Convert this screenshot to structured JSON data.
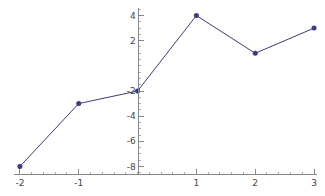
{
  "chart_data": {
    "type": "line",
    "x": [
      -2,
      -1,
      0,
      1,
      2,
      3
    ],
    "values": [
      -8,
      -3,
      -2,
      4,
      1,
      3
    ],
    "color": "#3b3b7d",
    "marker": "circle",
    "xlim": [
      -2.1,
      3.05
    ],
    "ylim": [
      -8.6,
      4.6
    ],
    "xticks": [
      -2,
      -1,
      1,
      2,
      3
    ],
    "yticks": [
      -8,
      -6,
      -4,
      -2,
      2,
      4
    ],
    "grid": false
  }
}
